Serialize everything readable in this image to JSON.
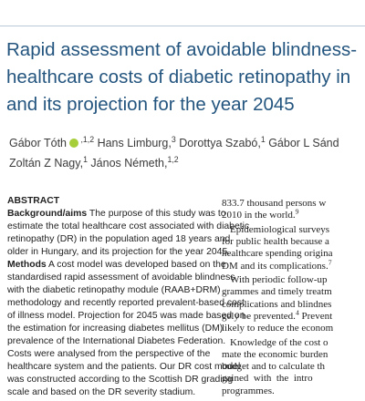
{
  "title": {
    "lines": [
      "Rapid assessment of avoidable blindness-",
      "healthcare costs of diabetic retinopathy in",
      "and its projection for the year 2045"
    ]
  },
  "authors": {
    "lines": [
      [
        {
          "t": "Gábor Tóth ",
          "orcid": true
        },
        {
          "t": ",1,2",
          "style": "sup"
        },
        {
          "t": " Hans Limburg,"
        },
        {
          "t": "3",
          "style": "sup"
        },
        {
          "t": " Dorottya Szabó,"
        },
        {
          "t": "1",
          "style": "sup"
        },
        {
          "t": " Gábor L Sánd"
        }
      ],
      [
        {
          "t": "Zoltán Z Nagy,"
        },
        {
          "t": "1",
          "style": "sup"
        },
        {
          "t": " János Németh,"
        },
        {
          "t": "1,2",
          "style": "sup"
        }
      ]
    ]
  },
  "abstract": {
    "heading": "ABSTRACT",
    "paragraphs": [
      [
        [
          {
            "t": "Background/aims",
            "style": "bold"
          },
          {
            "t": " The purpose of this study was to"
          }
        ],
        [
          {
            "t": "estimate the total healthcare cost associated with diabetic"
          }
        ],
        [
          {
            "t": "retinopathy (DR) in the population aged 18 years and"
          }
        ],
        [
          {
            "t": "older in Hungary, and its projection for the year 2045."
          }
        ]
      ],
      [
        [
          {
            "t": "Methods",
            "style": "bold"
          },
          {
            "t": " A cost model was developed based on the"
          }
        ],
        [
          {
            "t": "standardised rapid assessment of avoidable blindness"
          }
        ],
        [
          {
            "t": "with the diabetic retinopathy module (RAAB+DRM)"
          }
        ],
        [
          {
            "t": "methodology and recently reported prevalent-based cost"
          }
        ],
        [
          {
            "t": "of illness model. Projection for 2045 was made based on"
          }
        ],
        [
          {
            "t": "the estimation for increasing diabetes mellitus (DM)"
          }
        ],
        [
          {
            "t": "prevalence of the International Diabetes Federation."
          }
        ],
        [
          {
            "t": "Costs were analysed from the perspective of the"
          }
        ],
        [
          {
            "t": "healthcare system and the patients. Our DR cost model"
          }
        ],
        [
          {
            "t": "was constructed according to the Scottish DR grading"
          }
        ],
        [
          {
            "t": "scale and based on the DR severity stadium."
          }
        ]
      ]
    ]
  },
  "body": {
    "paragraphs": [
      [
        [
          {
            "t": "833.7 thousand persons w"
          }
        ],
        [
          {
            "t": "2010 in the world."
          },
          {
            "t": "9",
            "style": "sup"
          }
        ]
      ],
      [
        [
          {
            "t": "Epidemiological surveys"
          }
        ],
        [
          {
            "t": "for public health because a"
          }
        ],
        [
          {
            "t": "healthcare spending origina"
          }
        ],
        [
          {
            "t": "DM and its complications."
          },
          {
            "t": "7",
            "style": "sup"
          }
        ]
      ],
      [
        [
          {
            "t": "With periodic follow-up"
          }
        ],
        [
          {
            "t": "grammes and timely treatm"
          }
        ],
        [
          {
            "t": "complications and blindnes"
          }
        ],
        [
          {
            "t": "gely be prevented."
          },
          {
            "t": "4",
            "style": "sup"
          },
          {
            "t": " Prevent"
          }
        ],
        [
          {
            "t": "likely to reduce the econom"
          }
        ]
      ],
      [
        [
          {
            "t": "Knowledge of the cost o"
          }
        ],
        [
          {
            "t": "mate the economic burden"
          }
        ],
        [
          {
            "t": "budget and to calculate th"
          }
        ],
        [
          {
            "t": "gained  with  the  intro"
          }
        ],
        [
          {
            "t": "programmes."
          }
        ]
      ]
    ]
  }
}
